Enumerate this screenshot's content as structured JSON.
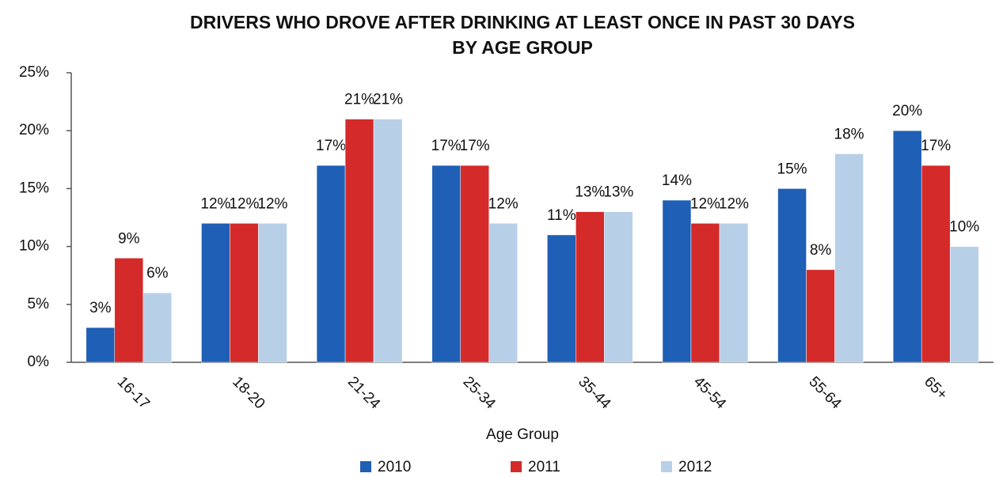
{
  "chart_data": {
    "type": "bar",
    "title": [
      "DRIVERS WHO DROVE AFTER DRINKING AT LEAST ONCE IN PAST 30 DAYS",
      "BY AGE GROUP"
    ],
    "x_label": "Age Group",
    "categories": [
      "16-17",
      "18-20",
      "21-24",
      "25-34",
      "35-44",
      "45-54",
      "55-64",
      "65+"
    ],
    "series": [
      {
        "name": "2010",
        "color": "#1f5fb5",
        "values": [
          3,
          12,
          17,
          17,
          11,
          14,
          15,
          20
        ],
        "value_labels": [
          "3%",
          "12%",
          "17%",
          "17%",
          "11%",
          "14%",
          "15%",
          "20%"
        ]
      },
      {
        "name": "2011",
        "color": "#d42a2a",
        "values": [
          9,
          12,
          21,
          17,
          13,
          12,
          8,
          17
        ],
        "value_labels": [
          "9%",
          "12%",
          "21%",
          "17%",
          "13%",
          "12%",
          "8%",
          "17%"
        ]
      },
      {
        "name": "2012",
        "color": "#b8cfe8",
        "values": [
          6,
          12,
          21,
          12,
          13,
          12,
          18,
          10
        ],
        "value_labels": [
          "6%",
          "12%",
          "21%",
          "12%",
          "13%",
          "12%",
          "18%",
          "10%"
        ]
      }
    ],
    "ylim": [
      0,
      25
    ],
    "yticks": [
      {
        "value": 0,
        "label": "0%"
      },
      {
        "value": 5,
        "label": "5%"
      },
      {
        "value": 10,
        "label": "10%"
      },
      {
        "value": 15,
        "label": "15%"
      },
      {
        "value": 20,
        "label": "20%"
      },
      {
        "value": 25,
        "label": "25%"
      }
    ],
    "grid": false,
    "legend": "bottom"
  }
}
